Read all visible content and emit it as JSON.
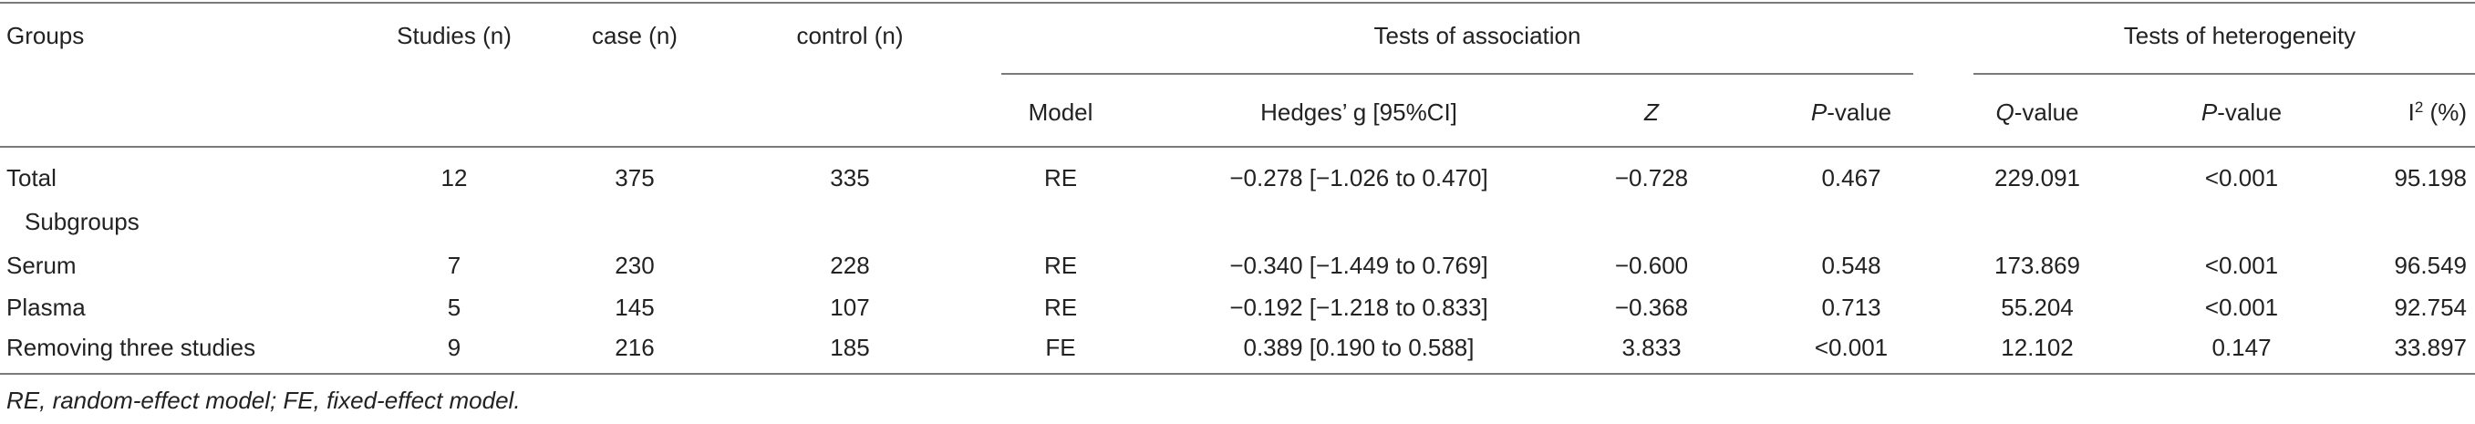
{
  "header": {
    "groups": "Groups",
    "studies": "Studies (n)",
    "case": "case (n)",
    "control": "control (n)",
    "association": "Tests of association",
    "heterogeneity": "Tests of heterogeneity",
    "model": "Model",
    "hedges": "Hedges’ g [95%CI]",
    "z": "Z",
    "p_italic": "P",
    "p_suffix": "-value",
    "q_italic": "Q",
    "q_suffix": "-value",
    "i_base": "I",
    "i_sup": "2",
    "i_suffix": " (%)"
  },
  "rows": [
    {
      "group": "Total",
      "studies": "12",
      "case": "375",
      "control": "335",
      "model": "RE",
      "hedges": "−0.278 [−1.026 to 0.470]",
      "z": "−0.728",
      "p": "0.467",
      "q": "229.091",
      "p2": "<0.001",
      "i2": "95.198"
    },
    {
      "group": "Serum",
      "studies": "7",
      "case": "230",
      "control": "228",
      "model": "RE",
      "hedges": "−0.340 [−1.449 to 0.769]",
      "z": "−0.600",
      "p": "0.548",
      "q": "173.869",
      "p2": "<0.001",
      "i2": "96.549"
    },
    {
      "group": "Plasma",
      "studies": "5",
      "case": "145",
      "control": "107",
      "model": "RE",
      "hedges": "−0.192 [−1.218 to 0.833]",
      "z": "−0.368",
      "p": "0.713",
      "q": "55.204",
      "p2": "<0.001",
      "i2": "92.754"
    },
    {
      "group": "Removing three studies",
      "studies": "9",
      "case": "216",
      "control": "185",
      "model": "FE",
      "hedges": "0.389 [0.190 to 0.588]",
      "z": "3.833",
      "p": "<0.001",
      "q": "12.102",
      "p2": "0.147",
      "i2": "33.897"
    }
  ],
  "subgroups_label": "Subgroups",
  "footnote": "RE, random-effect model; FE, fixed-effect model."
}
